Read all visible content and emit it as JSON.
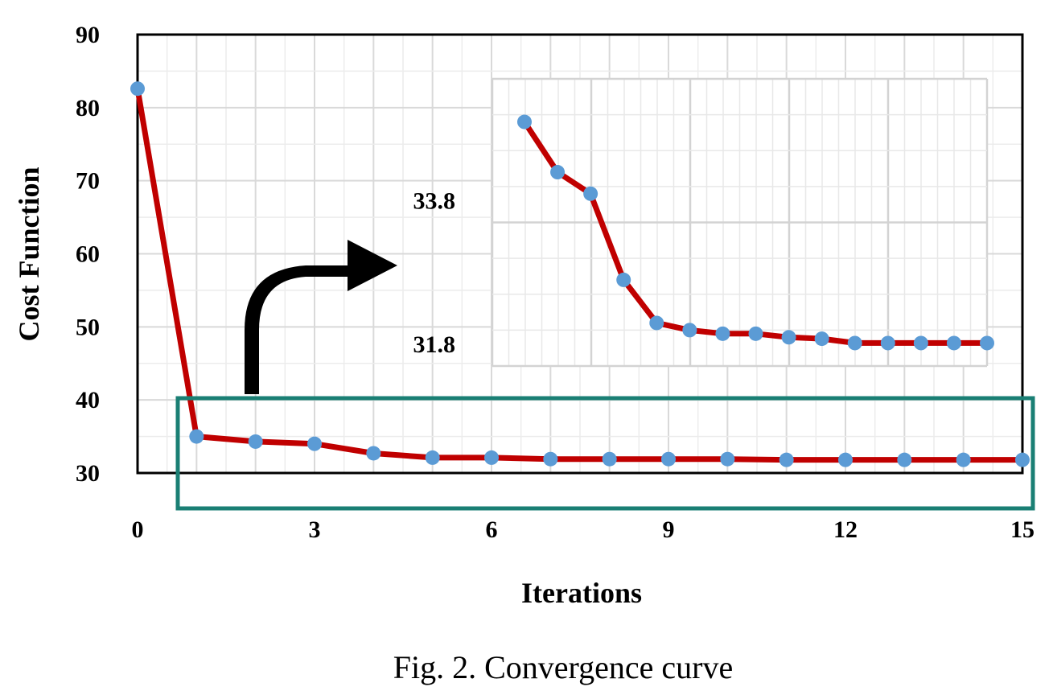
{
  "chart_data": [
    {
      "type": "line",
      "xlabel": "Iterations",
      "ylabel": "Cost Function",
      "x": [
        0,
        1,
        2,
        3,
        4,
        5,
        6,
        7,
        8,
        9,
        10,
        11,
        12,
        13,
        14,
        15
      ],
      "series": [
        {
          "values": [
            82.6,
            35.0,
            34.3,
            34.0,
            32.7,
            32.1,
            32.1,
            31.9,
            31.9,
            31.9,
            31.9,
            31.8,
            31.8,
            31.8,
            31.8,
            31.8
          ]
        }
      ],
      "xticks": [
        "0",
        "3",
        "6",
        "9",
        "12",
        "15"
      ],
      "yticks": [
        "30",
        "40",
        "50",
        "60",
        "70",
        "80",
        "90"
      ],
      "xlim": [
        0,
        15
      ],
      "ylim": [
        30,
        90
      ],
      "grid": true,
      "line_color": "#c00000",
      "marker_color": "#5b9bd5"
    },
    {
      "type": "line",
      "inset": true,
      "x": [
        1,
        2,
        3,
        4,
        5,
        6,
        7,
        8,
        9,
        10,
        11,
        12,
        13,
        14,
        15
      ],
      "series": [
        {
          "values": [
            34.9,
            34.2,
            33.9,
            32.7,
            32.1,
            32.0,
            31.95,
            31.95,
            31.9,
            31.88,
            31.82,
            31.82,
            31.82,
            31.82,
            31.82
          ]
        }
      ],
      "yticks": [
        "33.8",
        "31.8"
      ],
      "ylim": [
        31.5,
        35.5
      ],
      "grid": true
    }
  ],
  "annotation": {
    "highlight_color": "#1a7f74"
  },
  "caption": "Fig. 2.  Convergence curve"
}
